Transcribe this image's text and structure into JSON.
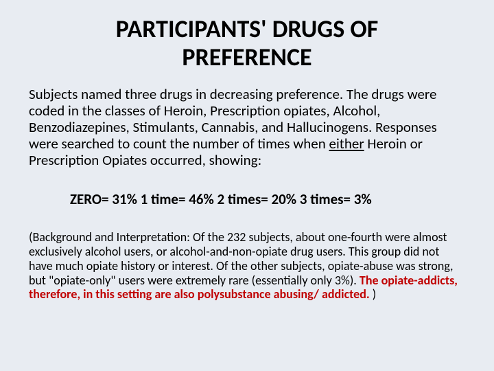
{
  "title": "PARTICIPANTS' DRUGS OF PREFERENCE",
  "intro_part1": "Subjects named three drugs in decreasing preference. The drugs were coded in the classes of Heroin, Prescription opiates, Alcohol, Benzodiazepines, Stimulants, Cannabis, and Hallucinogens. Responses were searched to count the number of times when ",
  "intro_underlined": "either",
  "intro_part2": " Heroin or Prescription Opiates occurred, showing:",
  "stats": "ZERO= 31%  1 time= 46%  2 times= 20%  3 times= 3%",
  "background_part1": "(Background and Interpretation: Of the 232 subjects, about one-fourth were almost exclusively alcohol users, or alcohol-and-non-opiate drug users. This group did not have much opiate history or interest. Of the other subjects, opiate-abuse was strong, but \"opiate-only\" users were extremely rare (essentially only 3%). ",
  "background_highlight": "The opiate-addicts, therefore, in this setting are also polysubstance abusing/ addicted.",
  "background_part2": " )",
  "colors": {
    "background": "#e8ecf2",
    "text": "#000000",
    "highlight": "#c00000"
  },
  "typography": {
    "title_fontsize": 36,
    "body_fontsize": 21,
    "footnote_fontsize": 18,
    "font_family": "Calibri"
  }
}
